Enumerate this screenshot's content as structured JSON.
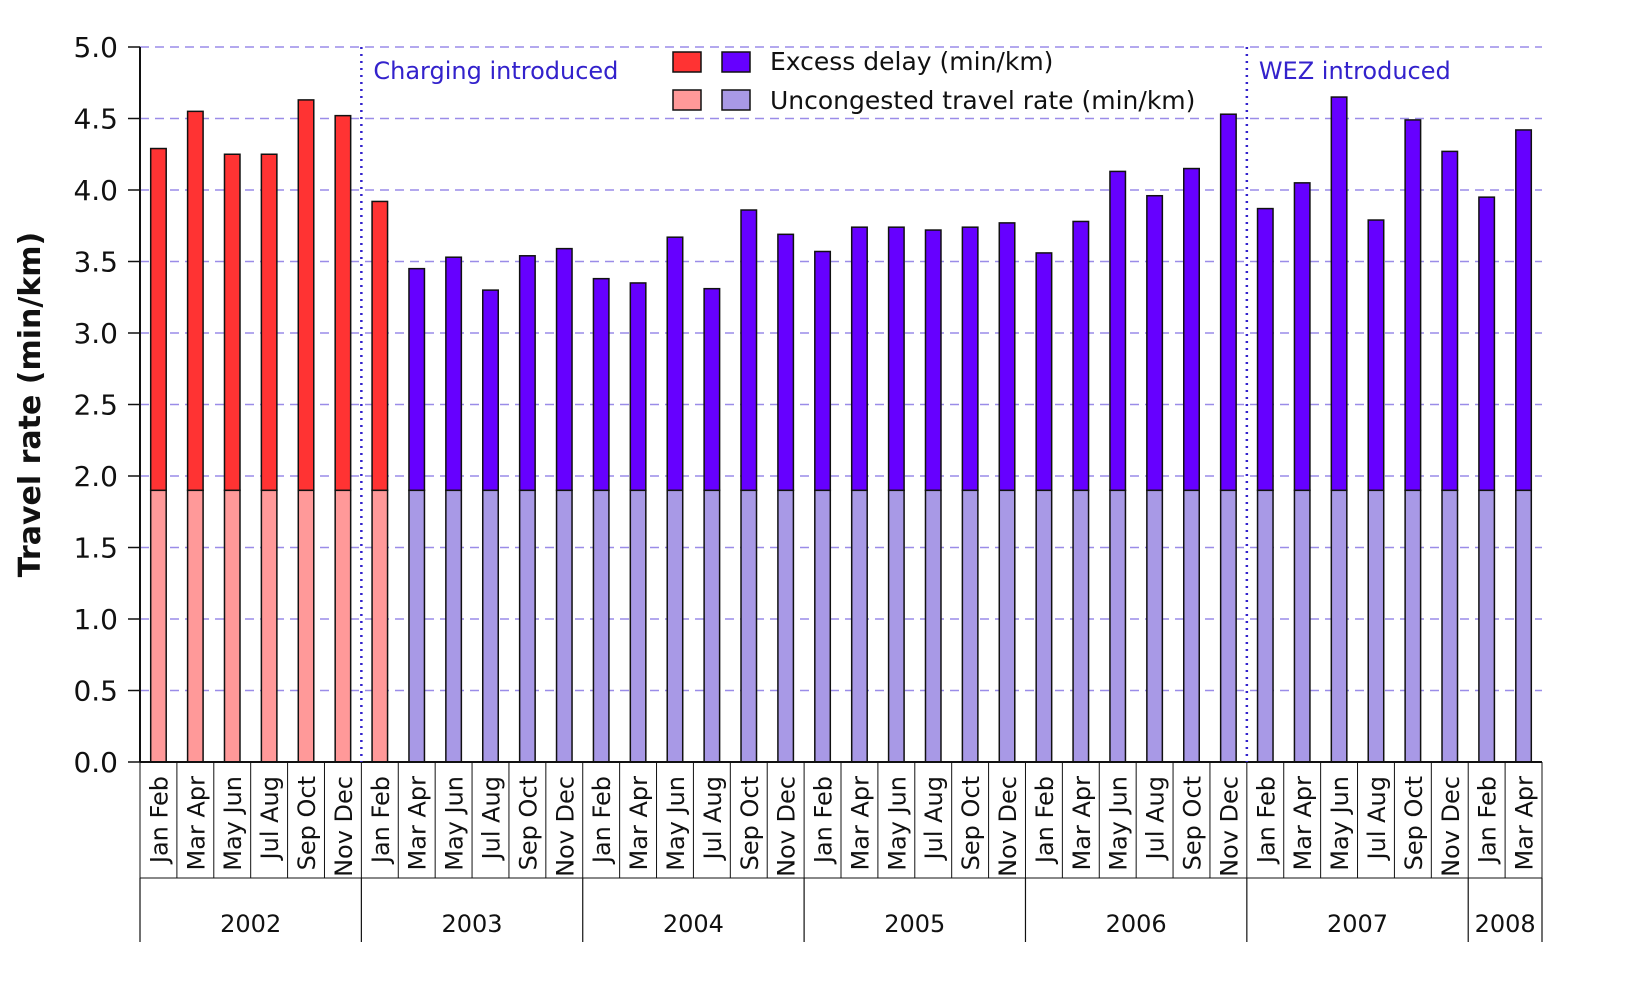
{
  "chart_data": {
    "type": "bar",
    "stacked": true,
    "ylabel": "Travel rate (min/km)",
    "ylim": [
      0,
      5
    ],
    "yticks": [
      "0.0",
      "0.5",
      "1.0",
      "1.5",
      "2.0",
      "2.5",
      "3.0",
      "3.5",
      "4.0",
      "4.5",
      "5.0"
    ],
    "grid": "horizontal-dashed",
    "legend": {
      "placement": "top-center",
      "excess_label": "Excess delay (min/km)",
      "uncongested_label": "Uncongested travel rate (min/km)"
    },
    "colors": {
      "pre_excess": "#ff3333",
      "pre_uncongested": "#ff9999",
      "post_excess": "#6600ff",
      "post_uncongested": "#a899e6",
      "grid": "#9a8ce8",
      "annotation": "#3322cc"
    },
    "annotations": [
      {
        "text": "Charging introduced",
        "after_index": 6
      },
      {
        "text": "WEZ introduced",
        "after_index": 30
      }
    ],
    "categories": [
      "Jan Feb",
      "Mar Apr",
      "May Jun",
      "Jul Aug",
      "Sep Oct",
      "Nov Dec",
      "Jan Feb",
      "Mar Apr",
      "May Jun",
      "Jul Aug",
      "Sep Oct",
      "Nov Dec",
      "Jan Feb",
      "Mar Apr",
      "May Jun",
      "Jul Aug",
      "Sep Oct",
      "Nov Dec",
      "Jan Feb",
      "Mar Apr",
      "May Jun",
      "Jul Aug",
      "Sep Oct",
      "Nov Dec",
      "Jan Feb",
      "Mar Apr",
      "May Jun",
      "Jul Aug",
      "Sep Oct",
      "Nov Dec",
      "Jan Feb",
      "Mar Apr",
      "May Jun",
      "Jul Aug",
      "Sep Oct",
      "Nov Dec",
      "Jan Feb",
      "Mar Apr"
    ],
    "years": [
      {
        "label": "2002",
        "count": 6
      },
      {
        "label": "2003",
        "count": 6
      },
      {
        "label": "2004",
        "count": 6
      },
      {
        "label": "2005",
        "count": 6
      },
      {
        "label": "2006",
        "count": 6
      },
      {
        "label": "2007",
        "count": 6
      },
      {
        "label": "2008",
        "count": 2
      }
    ],
    "pre_charging_count": 7,
    "uncongested": 1.9,
    "totals": [
      4.29,
      4.55,
      4.25,
      4.25,
      4.63,
      4.52,
      3.92,
      3.45,
      3.53,
      3.3,
      3.54,
      3.59,
      3.38,
      3.35,
      3.67,
      3.31,
      3.86,
      3.69,
      3.57,
      3.74,
      3.74,
      3.72,
      3.74,
      3.77,
      3.56,
      3.78,
      4.13,
      3.96,
      4.15,
      4.53,
      3.87,
      4.05,
      4.65,
      3.79,
      4.49,
      4.27,
      3.95,
      4.42
    ]
  }
}
